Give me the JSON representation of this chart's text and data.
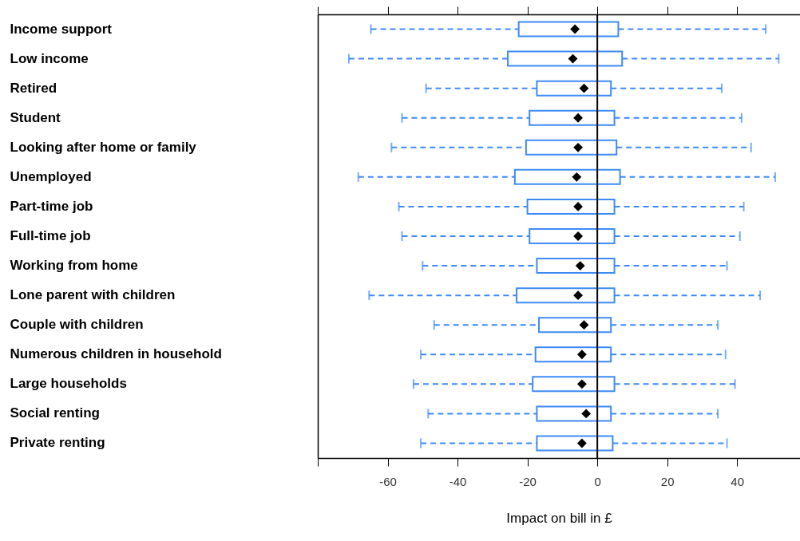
{
  "chart_data": {
    "type": "box",
    "orientation": "horizontal",
    "xlabel": "Impact on bill in £",
    "categories": [
      "Income support",
      "Low income",
      "Retired",
      "Student",
      "Looking after home or family",
      "Unemployed",
      "Part-time job",
      "Full-time job",
      "Working from home",
      "Lone parent with children",
      "Couple with children",
      "Numerous children in household",
      "Large households",
      "Social renting",
      "Private renting"
    ],
    "series": [
      {
        "color": "#3d8af7",
        "boxes": [
          {
            "low": -64.8,
            "q1": -22.5,
            "q3": 6.0,
            "high": 48.2,
            "mean": -6.4
          },
          {
            "low": -71.1,
            "q1": -25.6,
            "q3": 7.1,
            "high": 51.9,
            "mean": -7.0
          },
          {
            "low": -49.0,
            "q1": -17.3,
            "q3": 3.9,
            "high": 35.6,
            "mean": -3.8
          },
          {
            "low": -55.9,
            "q1": -19.4,
            "q3": 4.9,
            "high": 41.3,
            "mean": -5.5
          },
          {
            "low": -58.9,
            "q1": -20.4,
            "q3": 5.5,
            "high": 44.0,
            "mean": -5.5
          },
          {
            "low": -68.4,
            "q1": -23.6,
            "q3": 6.5,
            "high": 50.9,
            "mean": -5.9
          },
          {
            "low": -56.8,
            "q1": -20.0,
            "q3": 4.9,
            "high": 41.9,
            "mean": -5.5
          },
          {
            "low": -55.9,
            "q1": -19.4,
            "q3": 4.9,
            "high": 40.8,
            "mean": -5.5
          },
          {
            "low": -50.0,
            "q1": -17.3,
            "q3": 4.9,
            "high": 37.1,
            "mean": -4.9
          },
          {
            "low": -65.3,
            "q1": -23.1,
            "q3": 4.9,
            "high": 46.6,
            "mean": -5.5
          },
          {
            "low": -46.7,
            "q1": -16.7,
            "q3": 3.9,
            "high": 34.5,
            "mean": -3.8
          },
          {
            "low": -50.5,
            "q1": -17.7,
            "q3": 3.9,
            "high": 36.7,
            "mean": -4.4
          },
          {
            "low": -52.6,
            "q1": -18.5,
            "q3": 4.9,
            "high": 39.4,
            "mean": -4.4
          },
          {
            "low": -48.4,
            "q1": -17.3,
            "q3": 3.9,
            "high": 34.5,
            "mean": -3.2
          },
          {
            "low": -50.5,
            "q1": -17.3,
            "q3": 4.4,
            "high": 37.1,
            "mean": -4.4
          }
        ]
      }
    ],
    "xlim": [
      -80,
      58
    ],
    "xticks": [
      {
        "value": -80,
        "label": null
      },
      -60,
      -40,
      -20,
      0,
      20,
      40
    ],
    "ref_lines": [
      {
        "axis": "x",
        "value": 0,
        "color": "#000000"
      }
    ],
    "line_style": "dashed",
    "marker": "diamond",
    "grid": false,
    "legend": false
  }
}
